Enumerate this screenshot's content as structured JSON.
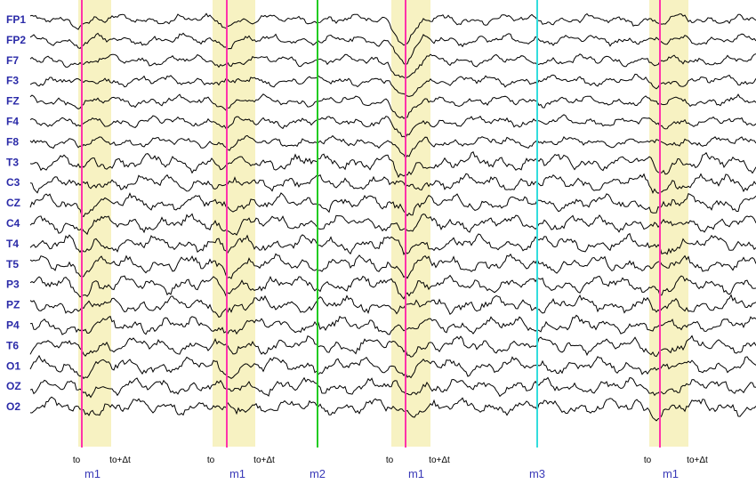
{
  "chart_data": {
    "type": "line",
    "channels": [
      "FP1",
      "FP2",
      "F7",
      "F3",
      "FZ",
      "F4",
      "F8",
      "T3",
      "C3",
      "CZ",
      "C4",
      "T4",
      "T5",
      "P3",
      "PZ",
      "P4",
      "T6",
      "O1",
      "OZ",
      "O2"
    ],
    "time_markers": [
      {
        "label": "m1",
        "color": "#ff33aa",
        "window": true,
        "to_label": "to",
        "dt_label": "to+Δt"
      },
      {
        "label": "m1",
        "color": "#ff33aa",
        "window": true,
        "to_label": "to",
        "dt_label": "to+Δt"
      },
      {
        "label": "m2",
        "color": "#22cc22",
        "window": false
      },
      {
        "label": "m1",
        "color": "#ff33aa",
        "window": true,
        "to_label": "to",
        "dt_label": "to+Δt"
      },
      {
        "label": "m3",
        "color": "#33dddd",
        "window": false
      },
      {
        "label": "m1",
        "color": "#ff33aa",
        "window": true,
        "to_label": "to",
        "dt_label": "to+Δt"
      }
    ],
    "window_color": "#f7f2c2",
    "trace_color": "#000000",
    "label_color": "#2a2aa8"
  }
}
